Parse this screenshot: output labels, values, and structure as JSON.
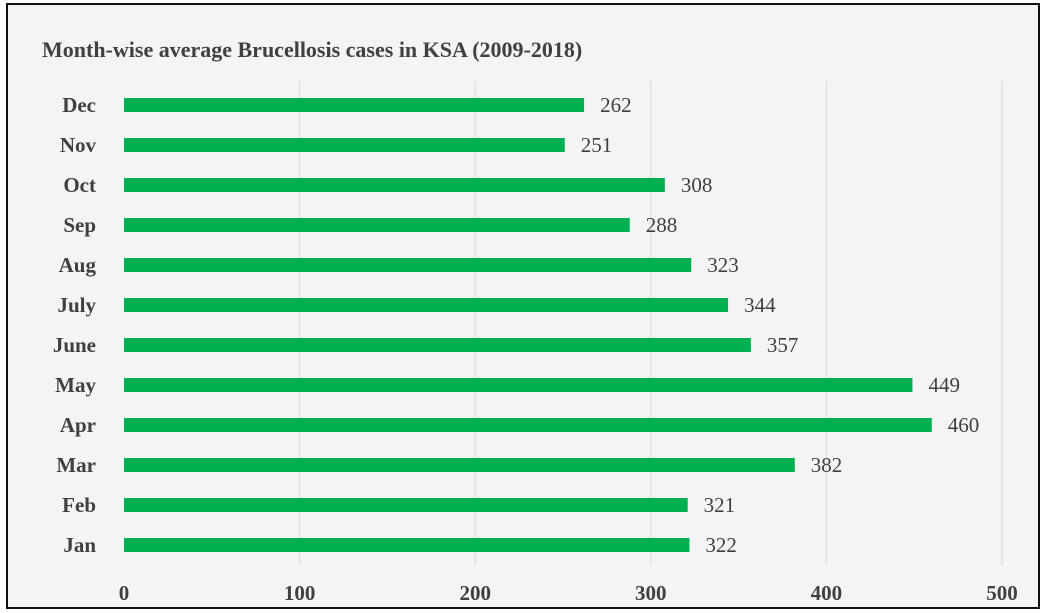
{
  "chart_data": {
    "type": "bar",
    "orientation": "horizontal",
    "title": "Month-wise average Brucellosis cases in KSA (2009-2018)",
    "categories": [
      "Jan",
      "Feb",
      "Mar",
      "Apr",
      "May",
      "June",
      "July",
      "Aug",
      "Sep",
      "Oct",
      "Nov",
      "Dec"
    ],
    "values": [
      322,
      321,
      382,
      460,
      449,
      357,
      344,
      323,
      288,
      308,
      251,
      262
    ],
    "xlabel": "",
    "ylabel": "",
    "xlim": [
      0,
      500
    ],
    "xticks": [
      0,
      100,
      200,
      300,
      400,
      500
    ],
    "grid": true,
    "legend": "none",
    "colors": {
      "bar": "#00b050",
      "grid": "#d9d9d9",
      "text": "#404040",
      "background": "#f4f4f4",
      "frame": "#111111"
    }
  }
}
